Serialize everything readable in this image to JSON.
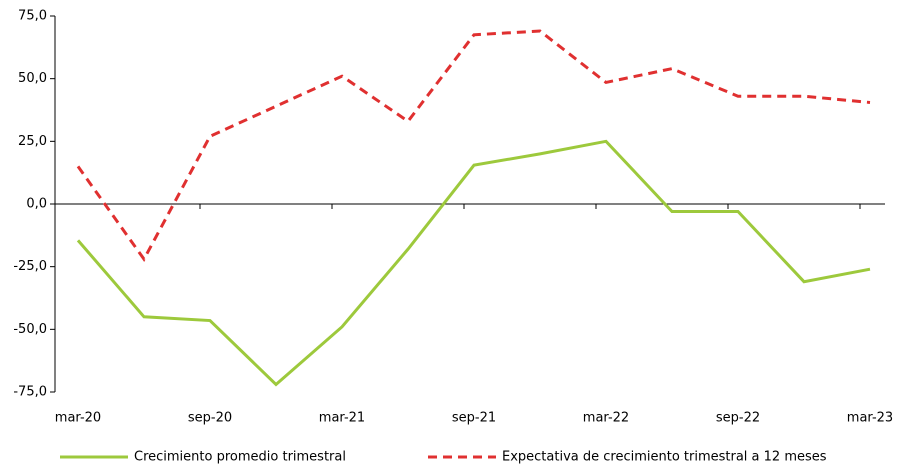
{
  "chart_data": {
    "type": "line",
    "categories": [
      "mar-20",
      null,
      "sep-20",
      null,
      "mar-21",
      null,
      "sep-21",
      null,
      "mar-22",
      null,
      "sep-22",
      null,
      "mar-23"
    ],
    "series": [
      {
        "name": "Crecimiento promedio trimestral",
        "color": "#9dc93c",
        "dash": "solid",
        "values": [
          -14.5,
          -45,
          -46.5,
          -72,
          -49,
          -18,
          15.5,
          20,
          25,
          -3,
          -3,
          -31,
          -26
        ]
      },
      {
        "name": "Expectativa de crecimiento trimestral a 12 meses",
        "color": "#e03030",
        "dash": "dashed",
        "values": [
          15,
          -22,
          27,
          39,
          51,
          33,
          67.5,
          69,
          48.5,
          54,
          43,
          43,
          40.5
        ]
      }
    ],
    "ylim": [
      -75,
      75
    ],
    "yticks": [
      {
        "value": -75,
        "label": "-75,0"
      },
      {
        "value": -50,
        "label": "-50,0"
      },
      {
        "value": -25,
        "label": "-25,0"
      },
      {
        "value": 0,
        "label": "0,0"
      },
      {
        "value": 25,
        "label": "25,0"
      },
      {
        "value": 50,
        "label": "50,0"
      },
      {
        "value": 75,
        "label": "75,0"
      }
    ],
    "legend": "bottom"
  }
}
